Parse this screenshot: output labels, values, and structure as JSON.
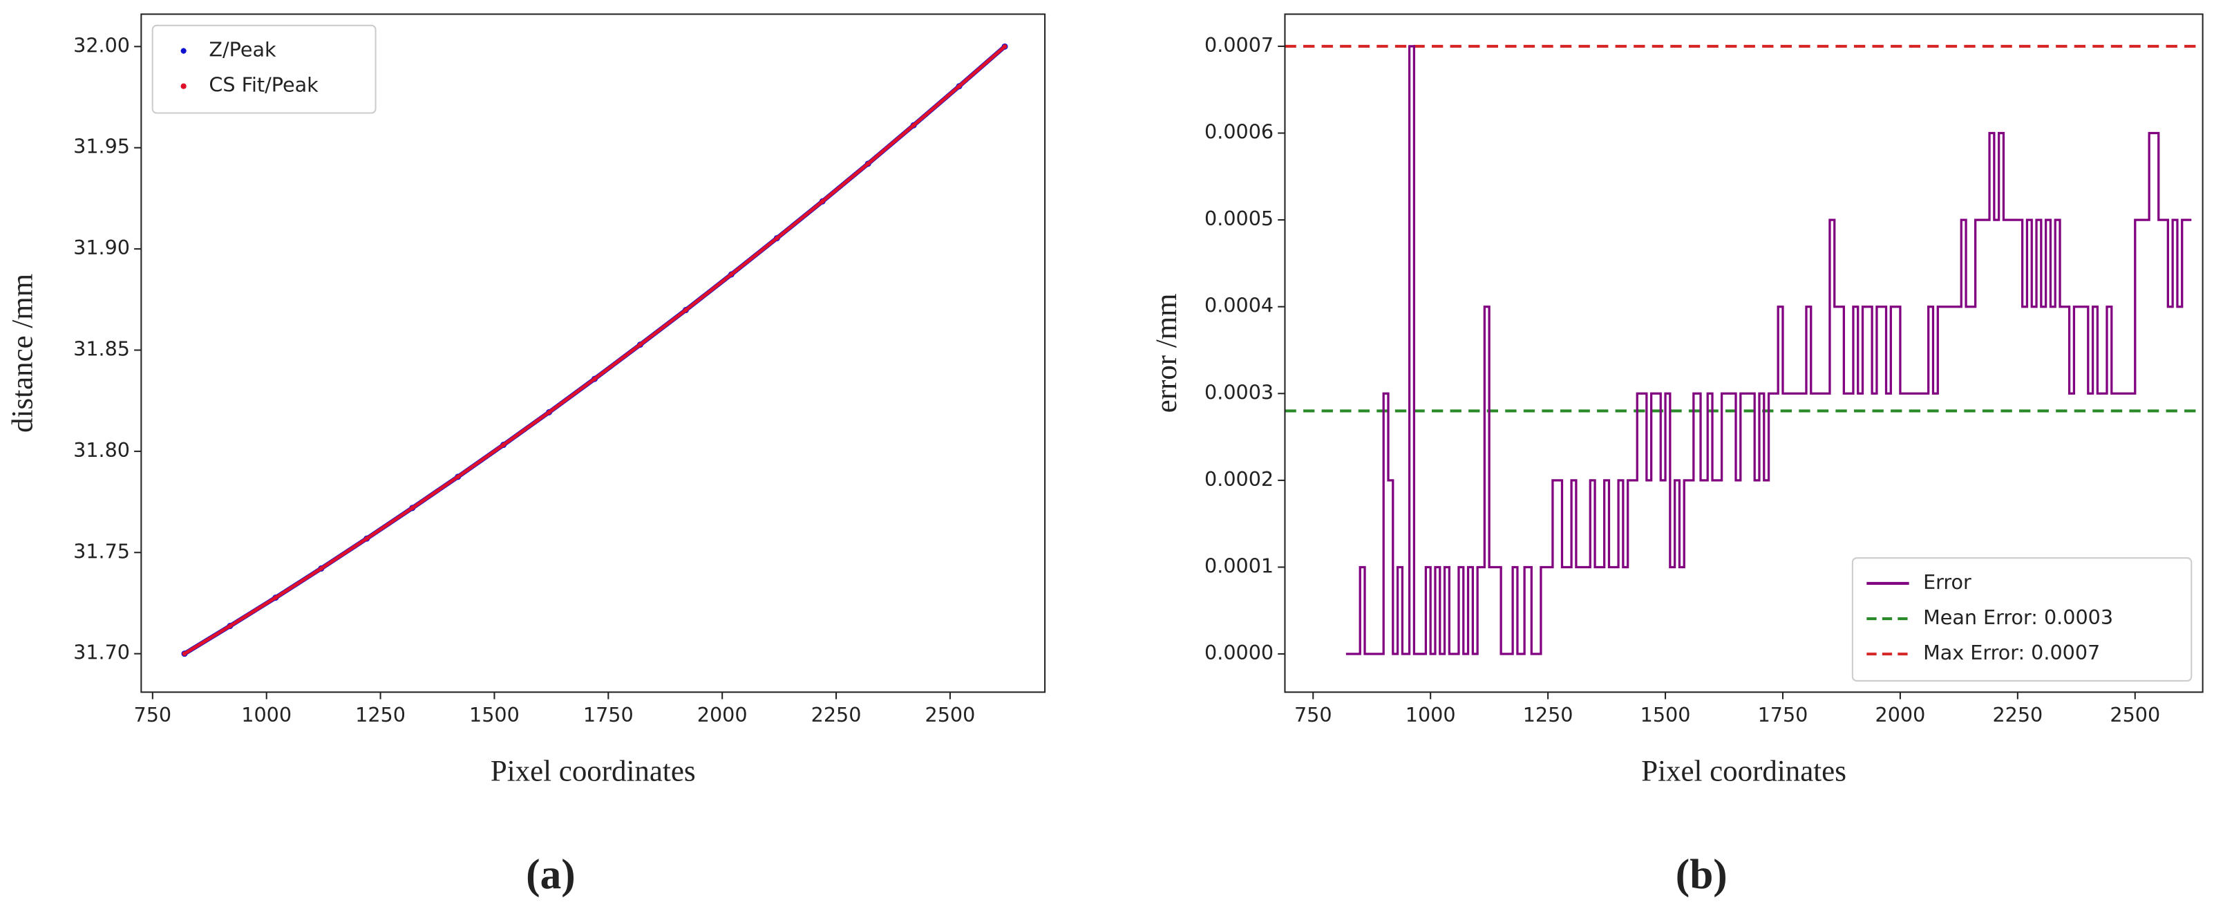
{
  "chart_data": [
    {
      "type": "scatter",
      "xlabel": "Pixel coordinates",
      "ylabel": "distance /mm",
      "panel_label": "(a)",
      "xlim": [
        725,
        2708
      ],
      "ylim": [
        31.681,
        32.016
      ],
      "xticks": [
        750,
        1000,
        1250,
        1500,
        1750,
        2000,
        2250,
        2500
      ],
      "yticks": [
        {
          "value": 31.7,
          "label": "31.70"
        },
        31.75,
        {
          "value": 31.8,
          "label": "31.80"
        },
        31.85,
        {
          "value": 31.9,
          "label": "31.90"
        },
        31.95,
        {
          "value": 32.0,
          "label": "32.00"
        }
      ],
      "legend": "upper left",
      "x": [
        820,
        920,
        1020,
        1120,
        1220,
        1320,
        1420,
        1520,
        1620,
        1720,
        1820,
        1920,
        2020,
        2120,
        2220,
        2320,
        2420,
        2520,
        2620
      ],
      "series": [
        {
          "name": "Z/Peak",
          "color": "#1010d0",
          "values": [
            31.7,
            31.7137,
            31.7277,
            31.7421,
            31.7569,
            31.772,
            31.7874,
            31.8032,
            31.8193,
            31.8358,
            31.8527,
            31.8698,
            31.8874,
            31.9053,
            31.9235,
            31.9421,
            31.9611,
            31.9804,
            32.0
          ]
        },
        {
          "name": "CS Fit/Peak",
          "color": "#e0102a",
          "values": [
            31.7,
            31.7137,
            31.7277,
            31.7421,
            31.7569,
            31.772,
            31.7874,
            31.8032,
            31.8193,
            31.8358,
            31.8527,
            31.8698,
            31.8874,
            31.9053,
            31.9235,
            31.9421,
            31.9611,
            31.9804,
            32.0
          ]
        }
      ]
    },
    {
      "type": "line",
      "xlabel": "Pixel coordinates",
      "ylabel": "error /mm",
      "panel_label": "(b)",
      "xlim": [
        690,
        2644
      ],
      "ylim": [
        -4.4e-05,
        0.000737
      ],
      "xticks": [
        750,
        1000,
        1250,
        1500,
        1750,
        2000,
        2250,
        2500
      ],
      "yticks": [
        {
          "value": 0,
          "label": "0.0000"
        },
        0.0001,
        0.0002,
        0.0003,
        0.0004,
        0.0005,
        0.0006,
        0.0007
      ],
      "legend": "lower right",
      "drawstyle": "steps-post",
      "x": [
        820,
        850,
        860,
        900,
        910,
        920,
        930,
        940,
        955,
        965,
        990,
        1000,
        1010,
        1020,
        1030,
        1040,
        1060,
        1070,
        1080,
        1090,
        1100,
        1115,
        1125,
        1150,
        1175,
        1185,
        1200,
        1215,
        1235,
        1260,
        1280,
        1300,
        1310,
        1340,
        1350,
        1370,
        1380,
        1400,
        1410,
        1420,
        1440,
        1460,
        1470,
        1490,
        1500,
        1510,
        1520,
        1530,
        1540,
        1560,
        1575,
        1590,
        1600,
        1620,
        1650,
        1660,
        1690,
        1700,
        1710,
        1720,
        1740,
        1750,
        1800,
        1810,
        1850,
        1860,
        1880,
        1900,
        1910,
        1920,
        1940,
        1950,
        1970,
        1980,
        2000,
        2060,
        2070,
        2080,
        2130,
        2140,
        2160,
        2190,
        2200,
        2210,
        2220,
        2260,
        2270,
        2280,
        2290,
        2300,
        2310,
        2320,
        2330,
        2340,
        2360,
        2370,
        2400,
        2410,
        2420,
        2440,
        2450,
        2500,
        2530,
        2550,
        2570,
        2580,
        2590,
        2600,
        2620
      ],
      "series": [
        {
          "name": "Error",
          "color": "#800080",
          "values": [
            0,
            0.0001,
            0,
            0.0003,
            0.0002,
            0,
            0.0001,
            0,
            0.0007,
            0,
            0.0001,
            0,
            0.0001,
            0,
            0.0001,
            0,
            0.0001,
            0,
            0.0001,
            0,
            0.0001,
            0.0004,
            0.0001,
            0,
            0.0001,
            0,
            0.0001,
            0,
            0.0001,
            0.0002,
            0.0001,
            0.0002,
            0.0001,
            0.0002,
            0.0001,
            0.0002,
            0.0001,
            0.0002,
            0.0001,
            0.0002,
            0.0003,
            0.0002,
            0.0003,
            0.0002,
            0.0003,
            0.0001,
            0.0002,
            0.0001,
            0.0002,
            0.0003,
            0.0002,
            0.0003,
            0.0002,
            0.0003,
            0.0002,
            0.0003,
            0.0002,
            0.0003,
            0.0002,
            0.0003,
            0.0004,
            0.0003,
            0.0004,
            0.0003,
            0.0005,
            0.0004,
            0.0003,
            0.0004,
            0.0003,
            0.0004,
            0.0003,
            0.0004,
            0.0003,
            0.0004,
            0.0003,
            0.0004,
            0.0003,
            0.0004,
            0.0005,
            0.0004,
            0.0005,
            0.0006,
            0.0005,
            0.0006,
            0.0005,
            0.0004,
            0.0005,
            0.0004,
            0.0005,
            0.0004,
            0.0005,
            0.0004,
            0.0005,
            0.0004,
            0.0003,
            0.0004,
            0.0003,
            0.0004,
            0.0003,
            0.0004,
            0.0003,
            0.0005,
            0.0006,
            0.0005,
            0.0004,
            0.0005,
            0.0004,
            0.0005,
            0.0005
          ]
        }
      ],
      "hlines": [
        {
          "name": "Mean Error: 0.0003",
          "color": "#2a8a2a",
          "value": 0.00028,
          "dashed": true
        },
        {
          "name": "Max Error: 0.0007",
          "color": "#d62728",
          "value": 0.0007,
          "dashed": true
        }
      ]
    }
  ]
}
